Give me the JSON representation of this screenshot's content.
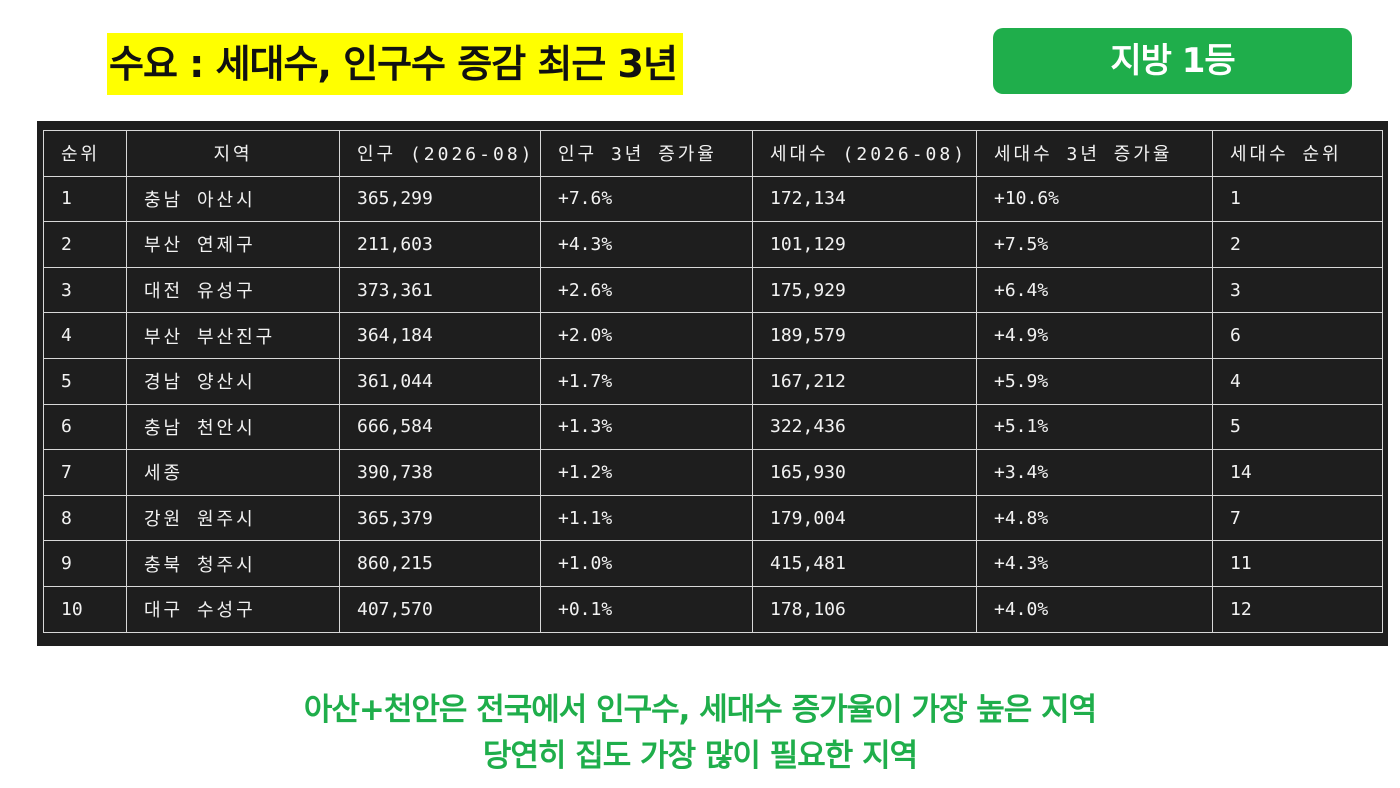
{
  "header": {
    "title": "수요 : 세대수, 인구수 증감  최근 3년",
    "badge": "지방 1등"
  },
  "table": {
    "columns": [
      "순위",
      "지역",
      "인구 (2026-08)",
      "인구 3년 증가율",
      "세대수 (2026-08)",
      "세대수 3년 증가율",
      "세대수 순위"
    ],
    "rows": [
      [
        "1",
        "충남 아산시",
        "365,299",
        "+7.6%",
        "172,134",
        "+10.6%",
        "1"
      ],
      [
        "2",
        "부산 연제구",
        "211,603",
        "+4.3%",
        "101,129",
        "+7.5%",
        "2"
      ],
      [
        "3",
        "대전 유성구",
        "373,361",
        "+2.6%",
        "175,929",
        "+6.4%",
        "3"
      ],
      [
        "4",
        "부산 부산진구",
        "364,184",
        "+2.0%",
        "189,579",
        "+4.9%",
        "6"
      ],
      [
        "5",
        "경남 양산시",
        "361,044",
        "+1.7%",
        "167,212",
        "+5.9%",
        "4"
      ],
      [
        "6",
        "충남 천안시",
        "666,584",
        "+1.3%",
        "322,436",
        "+5.1%",
        "5"
      ],
      [
        "7",
        "세종",
        "390,738",
        "+1.2%",
        "165,930",
        "+3.4%",
        "14"
      ],
      [
        "8",
        "강원 원주시",
        "365,379",
        "+1.1%",
        "179,004",
        "+4.8%",
        "7"
      ],
      [
        "9",
        "충북 청주시",
        "860,215",
        "+1.0%",
        "415,481",
        "+4.3%",
        "11"
      ],
      [
        "10",
        "대구 수성구",
        "407,570",
        "+0.1%",
        "178,106",
        "+4.0%",
        "12"
      ]
    ]
  },
  "footer": {
    "line1": "아산+천안은 전국에서 인구수, 세대수 증가율이 가장 높은 지역",
    "line2": "당연히 집도 가장 많이 필요한 지역"
  },
  "colors": {
    "title_highlight": "#ffff00",
    "accent_green": "#1fae4b",
    "table_background": "#1e1e1e"
  }
}
